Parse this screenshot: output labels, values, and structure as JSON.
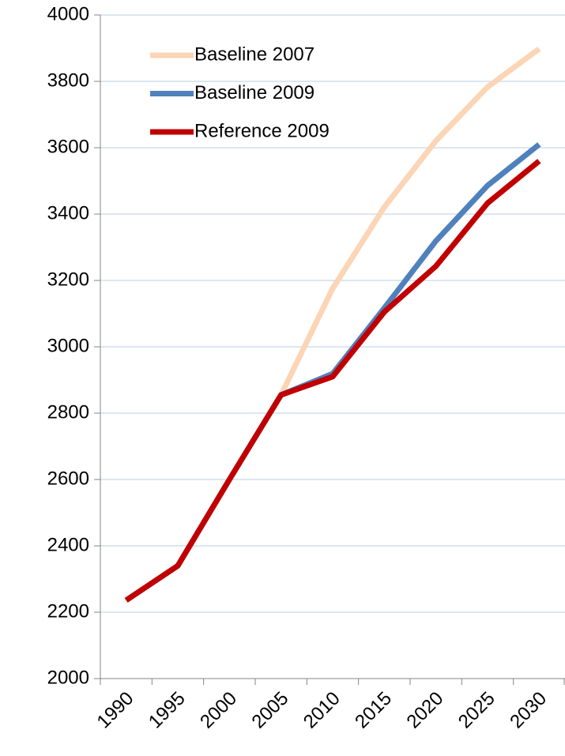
{
  "chart_data": {
    "type": "line",
    "categories": [
      "1990",
      "1995",
      "2000",
      "2005",
      "2010",
      "2015",
      "2020",
      "2025",
      "2030"
    ],
    "series": [
      {
        "name": "Baseline 2007",
        "color": "#fbd5b5",
        "values": [
          2236,
          2340,
          2600,
          2855,
          3176,
          3421,
          3621,
          3783,
          3898
        ]
      },
      {
        "name": "Baseline 2009",
        "color": "#4f81bd",
        "values": [
          2236,
          2340,
          2600,
          2855,
          2919,
          3117,
          3319,
          3486,
          3610
        ]
      },
      {
        "name": "Reference 2009",
        "color": "#c00000",
        "values": [
          2236,
          2340,
          2600,
          2855,
          2910,
          3105,
          3243,
          3433,
          3560
        ]
      }
    ],
    "ylim": [
      2000,
      4000
    ],
    "yticks": [
      2000,
      2200,
      2400,
      2600,
      2800,
      3000,
      3200,
      3400,
      3600,
      3800,
      4000
    ],
    "grid": true,
    "legend": "top-left"
  }
}
